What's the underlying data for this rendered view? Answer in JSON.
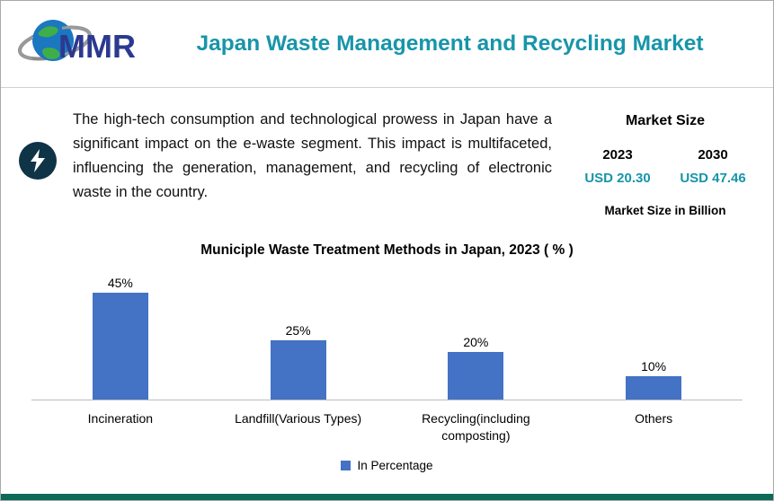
{
  "header": {
    "logo_text": "MMR",
    "title": "Japan Waste Management and Recycling Market"
  },
  "summary": {
    "text": "The high-tech consumption and technological prowess in Japan have a significant impact on the e-waste segment. This impact is multifaceted, influencing the generation, management, and recycling of electronic waste in the country."
  },
  "market_size": {
    "title": "Market Size",
    "years": [
      "2023",
      "2030"
    ],
    "values": [
      "USD 20.30",
      "USD 47.46"
    ],
    "unit_note": "Market Size in Billion"
  },
  "chart_data": {
    "type": "bar",
    "title": "Municiple Waste Treatment Methods in Japan, 2023 ( % )",
    "categories": [
      "Incineration",
      "Landfill(Various Types)",
      "Recycling(including composting)",
      "Others"
    ],
    "values": [
      45,
      25,
      20,
      10
    ],
    "data_labels": [
      "45%",
      "25%",
      "20%",
      "10%"
    ],
    "legend": [
      "In Percentage"
    ],
    "xlabel": "",
    "ylabel": "",
    "ylim": [
      0,
      50
    ],
    "grid": false,
    "legend_position": "bottom",
    "bar_color": "#4472c4"
  },
  "icons": {
    "logo_globe": "globe-icon",
    "bolt": "lightning-bolt-icon"
  },
  "colors": {
    "accent_teal": "#1795a9",
    "bar_blue": "#4472c4",
    "bolt_circle": "#0f3347",
    "bottom_border": "#0c6a58"
  }
}
